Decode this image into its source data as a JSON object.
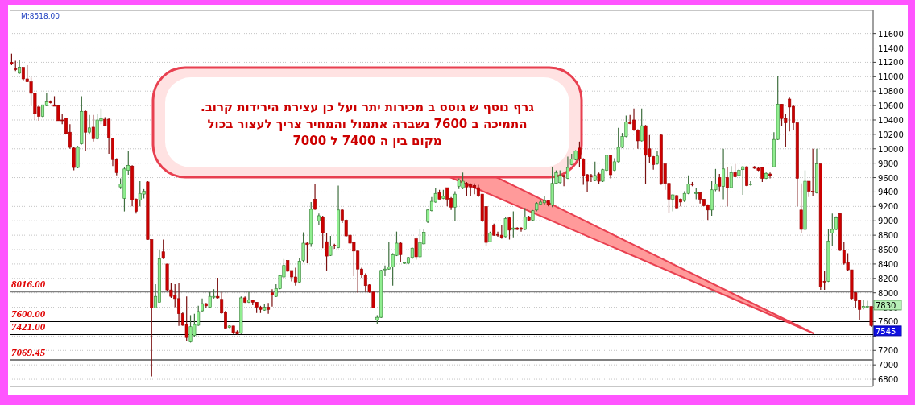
{
  "chart_data": {
    "type": "candlestick",
    "categories": [
      null,
      null,
      null,
      null,
      null,
      null,
      null,
      null,
      null,
      null,
      null,
      null,
      null,
      null,
      null,
      null,
      null,
      null,
      null,
      null,
      null,
      null,
      null,
      null,
      null,
      null,
      null,
      null,
      null,
      null,
      null,
      null,
      null,
      null,
      null,
      null,
      null,
      null,
      null,
      null,
      null,
      null,
      null,
      null,
      null,
      null,
      null,
      null,
      null,
      null,
      null,
      null,
      null,
      null,
      null,
      null,
      null,
      null,
      null,
      null,
      null,
      null,
      null,
      null,
      null,
      null,
      null,
      null,
      null,
      null,
      null,
      null,
      null,
      null,
      null,
      null,
      null,
      null,
      null,
      null,
      null,
      null,
      null,
      null,
      null,
      null,
      null,
      null,
      null,
      null,
      null,
      null,
      null,
      null,
      null,
      null,
      null,
      null,
      null,
      null,
      null,
      null,
      null,
      null,
      null,
      null,
      null,
      null,
      null,
      null,
      null,
      null,
      null,
      null,
      null,
      null,
      null,
      null,
      null,
      null,
      null,
      null,
      null,
      null,
      null,
      null,
      null,
      null,
      null,
      null,
      null,
      null,
      null,
      null,
      null,
      null,
      null,
      null,
      null,
      null,
      null,
      null,
      null,
      null,
      null,
      null,
      null,
      null,
      null,
      null,
      null,
      null,
      null,
      null,
      null,
      null,
      null,
      null,
      null,
      null,
      null,
      null,
      null,
      null,
      null,
      null,
      null,
      null,
      null,
      null,
      null,
      null,
      null,
      null,
      null,
      null,
      null,
      null,
      null,
      null,
      null,
      null,
      null,
      null,
      null,
      null,
      null,
      null,
      null,
      null,
      null,
      null,
      null,
      null,
      null,
      null,
      null,
      null,
      null,
      null,
      null,
      null,
      null,
      null,
      null,
      null,
      null,
      null,
      null,
      null,
      null,
      null,
      null,
      null,
      null,
      null,
      null,
      null,
      null,
      null,
      null,
      null
    ],
    "ohlc": [
      [
        11200,
        11320,
        11160,
        11180
      ],
      [
        11110,
        11220,
        11080,
        11100
      ],
      [
        11050,
        11230,
        11040,
        11130
      ],
      [
        11130,
        11130,
        10950,
        10970
      ],
      [
        10970,
        11160,
        10930,
        10930
      ],
      [
        10930,
        10990,
        10610,
        10770
      ],
      [
        10770,
        10770,
        10400,
        10490
      ],
      [
        10580,
        10600,
        10390,
        10450
      ],
      [
        10450,
        10610,
        10440,
        10610
      ],
      [
        10600,
        10770,
        10590,
        10650
      ],
      [
        10650,
        10670,
        10630,
        10640
      ],
      [
        10610,
        10730,
        10590,
        10590
      ],
      [
        10600,
        10600,
        10390,
        10390
      ],
      [
        10400,
        10480,
        10340,
        10390
      ],
      [
        10430,
        10430,
        10200,
        10210
      ],
      [
        10230,
        10340,
        10000,
        10020
      ],
      [
        10010,
        10020,
        9700,
        9740
      ],
      [
        9740,
        10040,
        9730,
        10020
      ],
      [
        10070,
        10730,
        10060,
        10520
      ],
      [
        10520,
        10530,
        9970,
        10230
      ],
      [
        10230,
        10470,
        10210,
        10290
      ],
      [
        10300,
        10470,
        10100,
        10140
      ],
      [
        10140,
        10480,
        10130,
        10400
      ],
      [
        10390,
        10560,
        10340,
        10420
      ],
      [
        10410,
        10440,
        10320,
        10320
      ],
      [
        10410,
        10430,
        9930,
        10150
      ],
      [
        10150,
        10150,
        9760,
        9850
      ],
      [
        9850,
        9870,
        9630,
        9670
      ],
      [
        9470,
        9590,
        9440,
        9510
      ],
      [
        9310,
        9740,
        9130,
        9720
      ],
      [
        9700,
        9970,
        9640,
        9770
      ],
      [
        9760,
        9770,
        9200,
        9290
      ],
      [
        9300,
        9310,
        9100,
        9130
      ],
      [
        9290,
        9550,
        9200,
        9380
      ],
      [
        9370,
        9440,
        9310,
        9410
      ],
      [
        9540,
        9550,
        8740,
        8740
      ],
      [
        8740,
        8740,
        6840,
        7790
      ],
      [
        7790,
        8120,
        7790,
        7950
      ],
      [
        7870,
        8590,
        7870,
        8470
      ],
      [
        8570,
        8740,
        8470,
        8480
      ],
      [
        8400,
        8400,
        8030,
        8040
      ],
      [
        8040,
        8140,
        7930,
        7950
      ],
      [
        7970,
        8120,
        7800,
        7920
      ],
      [
        7920,
        8140,
        7540,
        7710
      ],
      [
        7710,
        7730,
        7540,
        7550
      ],
      [
        7560,
        7950,
        7330,
        7380
      ],
      [
        7320,
        7690,
        7310,
        7530
      ],
      [
        7410,
        7710,
        7390,
        7560
      ],
      [
        7550,
        7820,
        7540,
        7740
      ],
      [
        7750,
        7920,
        7730,
        7850
      ],
      [
        7850,
        7860,
        7790,
        7820
      ],
      [
        7800,
        8010,
        7790,
        7950
      ],
      [
        7940,
        8050,
        7920,
        7950
      ],
      [
        7950,
        8210,
        7920,
        7930
      ],
      [
        7910,
        8010,
        7710,
        7720
      ],
      [
        7730,
        7750,
        7500,
        7510
      ],
      [
        7520,
        7550,
        7510,
        7540
      ],
      [
        7540,
        7540,
        7430,
        7450
      ],
      [
        7460,
        7480,
        7420,
        7430
      ],
      [
        7440,
        7950,
        7430,
        7930
      ],
      [
        7930,
        7950,
        7860,
        7870
      ],
      [
        7870,
        8010,
        7860,
        7900
      ],
      [
        7900,
        7900,
        7830,
        7870
      ],
      [
        7870,
        7870,
        7720,
        7800
      ],
      [
        7800,
        7820,
        7720,
        7770
      ],
      [
        7760,
        7850,
        7750,
        7800
      ],
      [
        7800,
        7860,
        7710,
        7770
      ],
      [
        8000,
        8050,
        7810,
        7970
      ],
      [
        7950,
        8120,
        7940,
        8060
      ],
      [
        8060,
        8250,
        8050,
        8240
      ],
      [
        8220,
        8470,
        8210,
        8380
      ],
      [
        8450,
        8450,
        8290,
        8300
      ],
      [
        8310,
        8310,
        8160,
        8220
      ],
      [
        8220,
        8350,
        8100,
        8150
      ],
      [
        8150,
        8480,
        8140,
        8440
      ],
      [
        8450,
        8840,
        8420,
        8690
      ],
      [
        8690,
        8700,
        8410,
        8670
      ],
      [
        8680,
        9260,
        8640,
        9160
      ],
      [
        9300,
        9510,
        9150,
        9160
      ],
      [
        9000,
        9100,
        8940,
        9070
      ],
      [
        9050,
        9070,
        8620,
        8830
      ],
      [
        8710,
        8830,
        8310,
        8510
      ],
      [
        8520,
        8790,
        8510,
        8650
      ],
      [
        8660,
        8680,
        8610,
        8650
      ],
      [
        8630,
        9490,
        8620,
        9150
      ],
      [
        9150,
        9160,
        8970,
        9010
      ],
      [
        9010,
        9020,
        8780,
        8790
      ],
      [
        8800,
        8810,
        8680,
        8690
      ],
      [
        8700,
        8700,
        8230,
        8580
      ],
      [
        8580,
        8590,
        8000,
        8330
      ],
      [
        8330,
        8350,
        8210,
        8250
      ],
      [
        8250,
        8270,
        8010,
        8100
      ],
      [
        8110,
        8120,
        8000,
        8010
      ],
      [
        8010,
        8010,
        7790,
        7790
      ],
      [
        7620,
        7690,
        7560,
        7660
      ],
      [
        7660,
        8320,
        7650,
        8310
      ],
      [
        8320,
        8380,
        8230,
        8330
      ],
      [
        8330,
        8710,
        8320,
        8360
      ],
      [
        8360,
        8550,
        8100,
        8530
      ],
      [
        8520,
        8850,
        8510,
        8690
      ],
      [
        8690,
        8700,
        8420,
        8530
      ],
      [
        8410,
        8420,
        8400,
        8420
      ],
      [
        8410,
        8500,
        8400,
        8490
      ],
      [
        8490,
        8630,
        8470,
        8620
      ],
      [
        8750,
        8770,
        8460,
        8500
      ],
      [
        8500,
        8880,
        8490,
        8700
      ],
      [
        8680,
        8890,
        8670,
        8840
      ],
      [
        8990,
        9160,
        8970,
        9150
      ],
      [
        9140,
        9330,
        9130,
        9270
      ],
      [
        9260,
        9460,
        9250,
        9380
      ],
      [
        9390,
        9430,
        9300,
        9300
      ],
      [
        9310,
        9430,
        9300,
        9340
      ],
      [
        9460,
        9460,
        9200,
        9300
      ],
      [
        9310,
        9330,
        9150,
        9190
      ],
      [
        9190,
        9410,
        9000,
        9370
      ],
      [
        9480,
        9590,
        9440,
        9570
      ],
      [
        9460,
        9670,
        9440,
        9550
      ],
      [
        9520,
        9540,
        9340,
        9470
      ],
      [
        9500,
        9520,
        9350,
        9470
      ],
      [
        9490,
        9520,
        9370,
        9460
      ],
      [
        9460,
        9500,
        9330,
        9350
      ],
      [
        9370,
        9370,
        8980,
        9000
      ],
      [
        9200,
        9200,
        8650,
        8700
      ],
      [
        8710,
        8850,
        8700,
        8830
      ],
      [
        8940,
        8960,
        8790,
        8800
      ],
      [
        8810,
        8850,
        8780,
        8800
      ],
      [
        8800,
        8940,
        8750,
        8770
      ],
      [
        8780,
        9050,
        8770,
        9030
      ],
      [
        9040,
        9050,
        8740,
        8870
      ],
      [
        8880,
        9130,
        8770,
        8900
      ],
      [
        8900,
        8910,
        8870,
        8880
      ],
      [
        8900,
        8910,
        8850,
        8880
      ],
      [
        8880,
        9180,
        8870,
        9050
      ],
      [
        9050,
        9070,
        9000,
        9010
      ],
      [
        9010,
        9150,
        9000,
        9140
      ],
      [
        9150,
        9260,
        9130,
        9240
      ],
      [
        9230,
        9290,
        9220,
        9260
      ],
      [
        9250,
        9350,
        9220,
        9280
      ],
      [
        9280,
        9290,
        9200,
        9220
      ],
      [
        9220,
        9740,
        9190,
        9520
      ],
      [
        9520,
        9700,
        9510,
        9670
      ],
      [
        9530,
        9700,
        9520,
        9630
      ],
      [
        9630,
        9640,
        9480,
        9610
      ],
      [
        9590,
        9890,
        9580,
        9740
      ],
      [
        9780,
        9930,
        9770,
        9860
      ],
      [
        9850,
        9980,
        9840,
        9970
      ],
      [
        10010,
        10100,
        9750,
        9860
      ],
      [
        9860,
        9870,
        9500,
        9630
      ],
      [
        9640,
        9650,
        9400,
        9550
      ],
      [
        9630,
        9650,
        9540,
        9610
      ],
      [
        9560,
        9820,
        9550,
        9630
      ],
      [
        9650,
        9670,
        9510,
        9550
      ],
      [
        9550,
        9720,
        9540,
        9710
      ],
      [
        9700,
        9920,
        9690,
        9910
      ],
      [
        9910,
        9920,
        9590,
        9640
      ],
      [
        9700,
        9870,
        9690,
        9820
      ],
      [
        9820,
        10290,
        9810,
        10020
      ],
      [
        10020,
        10220,
        10010,
        10170
      ],
      [
        10170,
        10460,
        10160,
        10370
      ],
      [
        10370,
        10470,
        10340,
        10350
      ],
      [
        10400,
        10560,
        10250,
        10260
      ],
      [
        10260,
        10270,
        10000,
        10110
      ],
      [
        10110,
        10560,
        10100,
        10320
      ],
      [
        10320,
        10330,
        9510,
        9910
      ],
      [
        10000,
        10190,
        9800,
        9890
      ],
      [
        9890,
        9900,
        9710,
        9780
      ],
      [
        9790,
        9970,
        9780,
        9900
      ],
      [
        10190,
        10200,
        9500,
        9520
      ],
      [
        9790,
        9790,
        9430,
        9520
      ],
      [
        9520,
        9520,
        9110,
        9300
      ],
      [
        9300,
        9370,
        9130,
        9360
      ],
      [
        9350,
        9360,
        9160,
        9180
      ],
      [
        9300,
        9310,
        9200,
        9260
      ],
      [
        9280,
        9410,
        9260,
        9380
      ],
      [
        9380,
        9630,
        9370,
        9510
      ],
      [
        9510,
        9540,
        9480,
        9500
      ],
      [
        9380,
        9460,
        9300,
        9390
      ],
      [
        9390,
        9390,
        9240,
        9300
      ],
      [
        9300,
        9300,
        9200,
        9210
      ],
      [
        9220,
        9230,
        9010,
        9150
      ],
      [
        9150,
        9550,
        9070,
        9430
      ],
      [
        9430,
        9720,
        9410,
        9510
      ],
      [
        9600,
        9650,
        9410,
        9480
      ],
      [
        9480,
        10000,
        9300,
        9720
      ],
      [
        9600,
        9740,
        9200,
        9460
      ],
      [
        9460,
        9760,
        9450,
        9670
      ],
      [
        9670,
        9790,
        9600,
        9610
      ],
      [
        9630,
        9720,
        9620,
        9700
      ],
      [
        9710,
        9760,
        9360,
        9750
      ],
      [
        9750,
        9760,
        9480,
        9490
      ],
      [
        9500,
        9550,
        9490,
        9510
      ],
      [
        9750,
        9760,
        9720,
        9730
      ],
      [
        9730,
        9740,
        9690,
        9700
      ],
      [
        9740,
        9750,
        9540,
        9590
      ],
      [
        9590,
        9670,
        9580,
        9660
      ],
      [
        9650,
        9670,
        9590,
        9630
      ],
      [
        9750,
        10230,
        9740,
        10130
      ],
      [
        10130,
        11010,
        10120,
        10620
      ],
      [
        10620,
        10620,
        10320,
        10420
      ],
      [
        10420,
        10490,
        10020,
        10360
      ],
      [
        10690,
        10710,
        10240,
        10580
      ],
      [
        10590,
        10610,
        10260,
        10360
      ],
      [
        10360,
        10360,
        9200,
        9590
      ],
      [
        9150,
        9520,
        8830,
        8880
      ],
      [
        8880,
        9700,
        8870,
        9550
      ],
      [
        9550,
        9550,
        9330,
        9410
      ],
      [
        9410,
        10000,
        9350,
        9400
      ],
      [
        9390,
        10000,
        9380,
        9790
      ],
      [
        9790,
        9790,
        8040,
        8080
      ],
      [
        8160,
        8310,
        8040,
        8150
      ],
      [
        8160,
        8880,
        8150,
        8720
      ],
      [
        8830,
        9100,
        8650,
        8880
      ],
      [
        8880,
        9060,
        8870,
        9040
      ],
      [
        9100,
        9100,
        8580,
        8590
      ],
      [
        8590,
        8700,
        8390,
        8410
      ],
      [
        8420,
        8550,
        8310,
        8320
      ],
      [
        8320,
        8320,
        7910,
        7920
      ],
      [
        8000,
        8010,
        7790,
        7890
      ],
      [
        7900,
        7900,
        7620,
        7770
      ],
      [
        7790,
        7900,
        7770,
        7810
      ],
      [
        7800,
        7890,
        7790,
        7810
      ],
      [
        7810,
        7810,
        7530,
        7545
      ]
    ],
    "ylim": [
      6700,
      11920
    ],
    "yticks": [
      6800,
      7000,
      7200,
      {
        "value": 7400,
        "label": null
      },
      7600,
      7800,
      8000,
      8200,
      8400,
      8600,
      8800,
      9000,
      9200,
      9400,
      9600,
      9800,
      10000,
      10200,
      10400,
      10600,
      10800,
      11000,
      11200,
      11400,
      11600
    ],
    "grid": "y",
    "tick_labels": "y",
    "ref_lines": [
      {
        "axis": "y",
        "value": 8016,
        "label": "8016.00",
        "color": "#808080"
      },
      {
        "axis": "y",
        "value": 7600,
        "label": "7600.00",
        "color": "#000000"
      },
      {
        "axis": "y",
        "value": 7421,
        "label": "7421.00",
        "color": "#000000"
      },
      {
        "axis": "y",
        "value": 7069.45,
        "label": "7069.45",
        "color": "#808080"
      }
    ],
    "annotations": [
      "M:8518.00",
      "7830",
      "7545",
      "גרף נוסף ש גוסס ב מכירות יתר ועל כן עצירת הירידות קרוב.",
      "התמיכה ב 7600 נשברה אתמול והמחיר צריך לעצור בכול",
      "מקום בין ה 7400 ל 7000"
    ]
  }
}
